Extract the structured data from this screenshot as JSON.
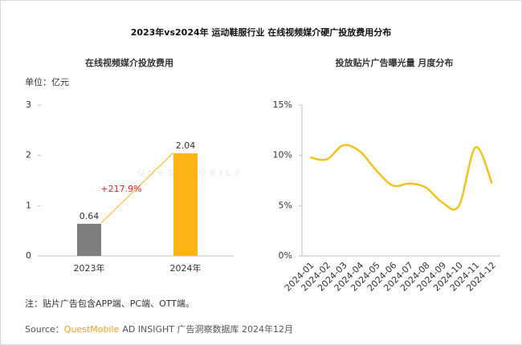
{
  "title": "2023年vs2024年 运动鞋服行业 在线视频媒介硬广投放费用分布",
  "watermark": "QUESTMOBILE",
  "note": "注：贴片广告包含APP端、PC端、OTT端。",
  "source": {
    "label": "Source：",
    "brand": "QuestMobile",
    "text": "AD INSIGHT 广告洞察数据库 2024年12月"
  },
  "chart_data": [
    {
      "type": "bar",
      "title": "在线视频媒介投放费用",
      "unit": "单位：亿元",
      "categories": [
        "2023年",
        "2024年"
      ],
      "values": [
        0.64,
        2.04
      ],
      "colors": [
        "#7f7f7f",
        "#fdb515"
      ],
      "ylim": [
        0,
        3
      ],
      "yticks": [
        0,
        1,
        2,
        3
      ],
      "annotation": "+217.9%",
      "annotation_color": "#e0202a"
    },
    {
      "type": "line",
      "title": "投放贴片广告曝光量 月度分布",
      "categories": [
        "2024-01",
        "2024-02",
        "2024-03",
        "2024-04",
        "2024-05",
        "2024-06",
        "2024-07",
        "2024-08",
        "2024-09",
        "2024-10",
        "2024-11",
        "2024-12"
      ],
      "values": [
        9.8,
        9.6,
        11.0,
        10.4,
        8.5,
        7.0,
        7.2,
        6.8,
        5.3,
        5.0,
        10.8,
        7.2
      ],
      "color": "#f5c21b",
      "ylim": [
        0,
        15
      ],
      "yticks": [
        {
          "value": 0,
          "label": "0%"
        },
        {
          "value": 5,
          "label": "5%"
        },
        {
          "value": 10,
          "label": "10%"
        },
        {
          "value": 15,
          "label": "15%"
        }
      ]
    }
  ]
}
